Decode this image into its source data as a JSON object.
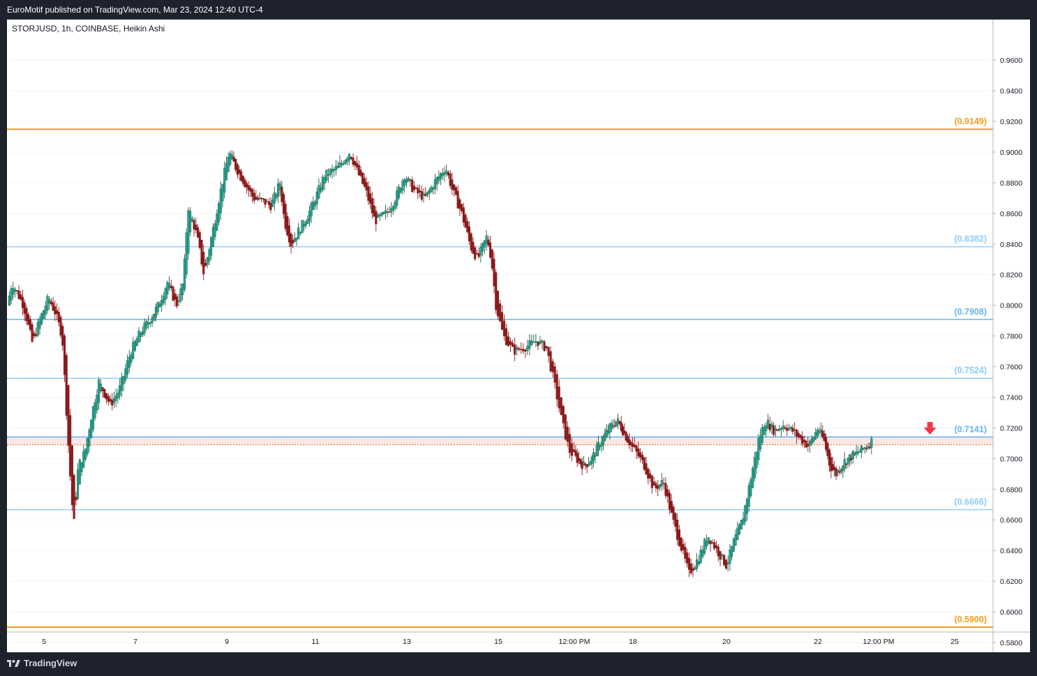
{
  "header": {
    "title": "EuroMotif published on TradingView.com, Mar 23, 2024 12:40 UTC-4"
  },
  "footer": {
    "brand": "TradingView",
    "logo_icon": "tradingview-logo-icon"
  },
  "chart_data": {
    "type": "candlestick",
    "symbol_label": "STORJUSD, 1h, COINBASE, Heikin Ashi",
    "y_axis": {
      "range": [
        0.575,
        0.97
      ],
      "ticks": [
        "0.9600",
        "0.9400",
        "0.9200",
        "0.9000",
        "0.8800",
        "0.8600",
        "0.8400",
        "0.8200",
        "0.8000",
        "0.7800",
        "0.7600",
        "0.7400",
        "0.7200",
        "0.7000",
        "0.6800",
        "0.6600",
        "0.6400",
        "0.6200",
        "0.6000",
        "0.5800"
      ]
    },
    "x_axis": {
      "ticks": [
        {
          "label": "5",
          "day": 5.0
        },
        {
          "label": "7",
          "day": 7.0
        },
        {
          "label": "9",
          "day": 9.0
        },
        {
          "label": "11",
          "day": 11.0
        },
        {
          "label": "13",
          "day": 13.0
        },
        {
          "label": "15",
          "day": 15.0
        },
        {
          "label": "12:00 PM",
          "day": 16.5
        },
        {
          "label": "18",
          "day": 18.0
        },
        {
          "label": "20",
          "day": 20.0
        },
        {
          "label": "22",
          "day": 22.0
        },
        {
          "label": "12:00 PM",
          "day": 23.5
        },
        {
          "label": "25",
          "day": 25.0
        }
      ],
      "range_days": [
        4.2,
        25.8
      ]
    },
    "levels": [
      {
        "value": 0.9149,
        "label": "(0.9149)",
        "color": "#f59d1a",
        "role": "major"
      },
      {
        "value": 0.8382,
        "label": "(0.8382)",
        "color": "#90caf9",
        "role": "fib"
      },
      {
        "value": 0.7908,
        "label": "(0.7908)",
        "color": "#64b5f6",
        "role": "fib"
      },
      {
        "value": 0.7524,
        "label": "(0.7524)",
        "color": "#90caf9",
        "role": "fib"
      },
      {
        "value": 0.7141,
        "label": "(0.7141)",
        "color": "#64b5f6",
        "role": "fib"
      },
      {
        "value": 0.6666,
        "label": "(0.6666)",
        "color": "#90caf9",
        "role": "fib"
      },
      {
        "value": 0.59,
        "label": "(0.5900)",
        "color": "#f59d1a",
        "role": "major"
      }
    ],
    "zone": {
      "top": 0.7141,
      "bottom": 0.709,
      "fill": "#fde7e2",
      "top_line": "#3f51b5",
      "bottom_line": "#e0633f"
    },
    "arrow": {
      "value": 0.7175,
      "day": 24.5,
      "color": "#f23645",
      "icon": "down-arrow-icon"
    },
    "colors": {
      "up": "#26a69a",
      "up_body": "#1b5e3f",
      "down": "#8b1a1a",
      "grid": "#f0f3fa"
    },
    "path_anchors": [
      [
        4.2,
        0.8
      ],
      [
        4.3,
        0.815
      ],
      [
        4.55,
        0.8
      ],
      [
        4.75,
        0.775
      ],
      [
        4.9,
        0.79
      ],
      [
        5.1,
        0.805
      ],
      [
        5.25,
        0.795
      ],
      [
        5.4,
        0.78
      ],
      [
        5.55,
        0.7
      ],
      [
        5.65,
        0.655
      ],
      [
        5.75,
        0.695
      ],
      [
        5.9,
        0.705
      ],
      [
        6.05,
        0.73
      ],
      [
        6.2,
        0.75
      ],
      [
        6.45,
        0.735
      ],
      [
        6.65,
        0.745
      ],
      [
        6.9,
        0.77
      ],
      [
        7.1,
        0.782
      ],
      [
        7.3,
        0.79
      ],
      [
        7.5,
        0.8
      ],
      [
        7.7,
        0.815
      ],
      [
        7.9,
        0.8
      ],
      [
        8.05,
        0.815
      ],
      [
        8.15,
        0.865
      ],
      [
        8.35,
        0.845
      ],
      [
        8.5,
        0.82
      ],
      [
        8.7,
        0.85
      ],
      [
        8.9,
        0.88
      ],
      [
        9.05,
        0.9
      ],
      [
        9.2,
        0.89
      ],
      [
        9.4,
        0.88
      ],
      [
        9.6,
        0.87
      ],
      [
        9.8,
        0.868
      ],
      [
        10.0,
        0.865
      ],
      [
        10.2,
        0.88
      ],
      [
        10.3,
        0.855
      ],
      [
        10.45,
        0.84
      ],
      [
        10.65,
        0.85
      ],
      [
        10.85,
        0.86
      ],
      [
        11.0,
        0.87
      ],
      [
        11.2,
        0.885
      ],
      [
        11.5,
        0.89
      ],
      [
        11.75,
        0.9
      ],
      [
        11.95,
        0.885
      ],
      [
        12.1,
        0.875
      ],
      [
        12.3,
        0.855
      ],
      [
        12.55,
        0.86
      ],
      [
        12.75,
        0.87
      ],
      [
        12.95,
        0.885
      ],
      [
        13.15,
        0.875
      ],
      [
        13.4,
        0.87
      ],
      [
        13.6,
        0.88
      ],
      [
        13.85,
        0.89
      ],
      [
        14.0,
        0.875
      ],
      [
        14.2,
        0.86
      ],
      [
        14.4,
        0.838
      ],
      [
        14.55,
        0.83
      ],
      [
        14.75,
        0.845
      ],
      [
        14.85,
        0.83
      ],
      [
        14.95,
        0.8
      ],
      [
        15.1,
        0.78
      ],
      [
        15.3,
        0.77
      ],
      [
        15.55,
        0.773
      ],
      [
        15.75,
        0.777
      ],
      [
        15.95,
        0.772
      ],
      [
        16.1,
        0.75
      ],
      [
        16.25,
        0.725
      ],
      [
        16.4,
        0.705
      ],
      [
        16.55,
        0.7
      ],
      [
        16.75,
        0.695
      ],
      [
        16.95,
        0.7
      ],
      [
        17.15,
        0.71
      ],
      [
        17.4,
        0.72
      ],
      [
        17.6,
        0.725
      ],
      [
        17.85,
        0.713
      ],
      [
        18.05,
        0.705
      ],
      [
        18.25,
        0.695
      ],
      [
        18.45,
        0.68
      ],
      [
        18.65,
        0.685
      ],
      [
        18.85,
        0.66
      ],
      [
        19.05,
        0.64
      ],
      [
        19.2,
        0.625
      ],
      [
        19.4,
        0.635
      ],
      [
        19.6,
        0.65
      ],
      [
        19.8,
        0.64
      ],
      [
        20.0,
        0.63
      ],
      [
        20.15,
        0.645
      ],
      [
        20.35,
        0.66
      ],
      [
        20.55,
        0.69
      ],
      [
        20.7,
        0.712
      ],
      [
        20.85,
        0.725
      ],
      [
        21.05,
        0.718
      ],
      [
        21.25,
        0.722
      ],
      [
        21.45,
        0.718
      ],
      [
        21.65,
        0.712
      ],
      [
        21.8,
        0.708
      ],
      [
        22.0,
        0.72
      ],
      [
        22.15,
        0.712
      ],
      [
        22.3,
        0.695
      ],
      [
        22.45,
        0.69
      ],
      [
        22.65,
        0.698
      ],
      [
        22.85,
        0.702
      ],
      [
        23.05,
        0.705
      ],
      [
        23.2,
        0.708
      ],
      [
        23.35,
        0.712
      ]
    ]
  }
}
